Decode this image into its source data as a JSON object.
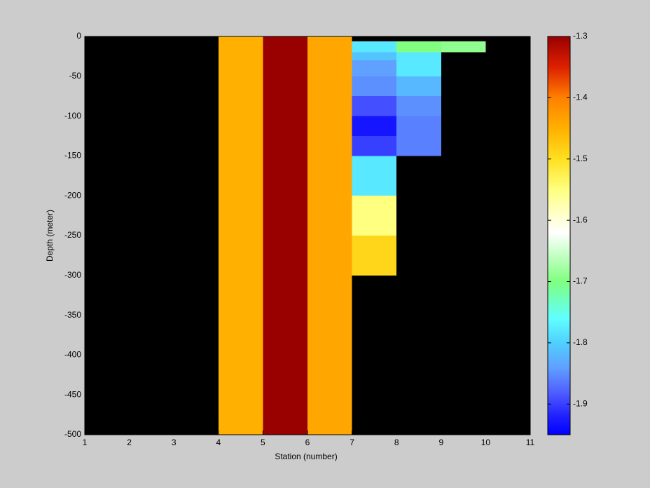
{
  "chart_data": {
    "type": "heatmap",
    "xlabel": "Station (number)",
    "ylabel": "Depth (meter)",
    "x_edges": [
      1,
      2,
      3,
      4,
      5,
      6,
      7,
      8,
      9,
      10,
      11
    ],
    "y_edges": [
      0,
      -6,
      -20,
      -30,
      -50,
      -75,
      -100,
      -125,
      -150,
      -200,
      -250,
      -300,
      -500
    ],
    "values": [
      [
        null,
        null,
        null,
        -1.45,
        -1.3,
        -1.44,
        null,
        null,
        null,
        null
      ],
      [
        null,
        null,
        null,
        -1.45,
        -1.3,
        -1.44,
        -1.78,
        -1.7,
        -1.69,
        null
      ],
      [
        null,
        null,
        null,
        -1.45,
        -1.3,
        -1.44,
        -1.81,
        -1.78,
        null,
        null
      ],
      [
        null,
        null,
        null,
        -1.45,
        -1.3,
        -1.44,
        -1.84,
        -1.78,
        null,
        null
      ],
      [
        null,
        null,
        null,
        -1.45,
        -1.3,
        -1.44,
        -1.85,
        -1.82,
        null,
        null
      ],
      [
        null,
        null,
        null,
        -1.45,
        -1.3,
        -1.44,
        -1.89,
        -1.85,
        null,
        null
      ],
      [
        null,
        null,
        null,
        -1.45,
        -1.3,
        -1.44,
        -1.93,
        -1.86,
        null,
        null
      ],
      [
        null,
        null,
        null,
        -1.45,
        -1.3,
        -1.44,
        -1.9,
        -1.86,
        null,
        null
      ],
      [
        null,
        null,
        null,
        -1.45,
        -1.3,
        -1.44,
        -1.78,
        null,
        null,
        null
      ],
      [
        null,
        null,
        null,
        -1.45,
        -1.3,
        -1.44,
        -1.55,
        null,
        null,
        null
      ],
      [
        null,
        null,
        null,
        -1.45,
        -1.3,
        -1.44,
        -1.49,
        null,
        null,
        null
      ],
      [
        null,
        null,
        null,
        -1.45,
        -1.3,
        -1.44,
        null,
        null,
        null,
        null
      ]
    ],
    "xlim": [
      1,
      11
    ],
    "xticks": [
      1,
      2,
      3,
      4,
      5,
      6,
      7,
      8,
      9,
      10,
      11
    ],
    "ylim": [
      -500,
      0
    ],
    "yticks": [
      0,
      -50,
      -100,
      -150,
      -200,
      -250,
      -300,
      -350,
      -400,
      -450,
      -500
    ],
    "background_color": "#000000",
    "clim": [
      -1.95,
      -1.3
    ],
    "cticks": [
      -1.3,
      -1.4,
      -1.5,
      -1.6,
      -1.7,
      -1.8,
      -1.9
    ],
    "colormap": [
      [
        -1.95,
        "#0000ff"
      ],
      [
        -1.92,
        "#2020ff"
      ],
      [
        -1.88,
        "#5060ff"
      ],
      [
        -1.84,
        "#60a0ff"
      ],
      [
        -1.8,
        "#50d0ff"
      ],
      [
        -1.76,
        "#60ffff"
      ],
      [
        -1.7,
        "#80ff80"
      ],
      [
        -1.62,
        "#ffffff"
      ],
      [
        -1.55,
        "#ffff80"
      ],
      [
        -1.5,
        "#ffe020"
      ],
      [
        -1.45,
        "#ffb000"
      ],
      [
        -1.4,
        "#ff8000"
      ],
      [
        -1.35,
        "#dd2000"
      ],
      [
        -1.3,
        "#990000"
      ]
    ]
  }
}
